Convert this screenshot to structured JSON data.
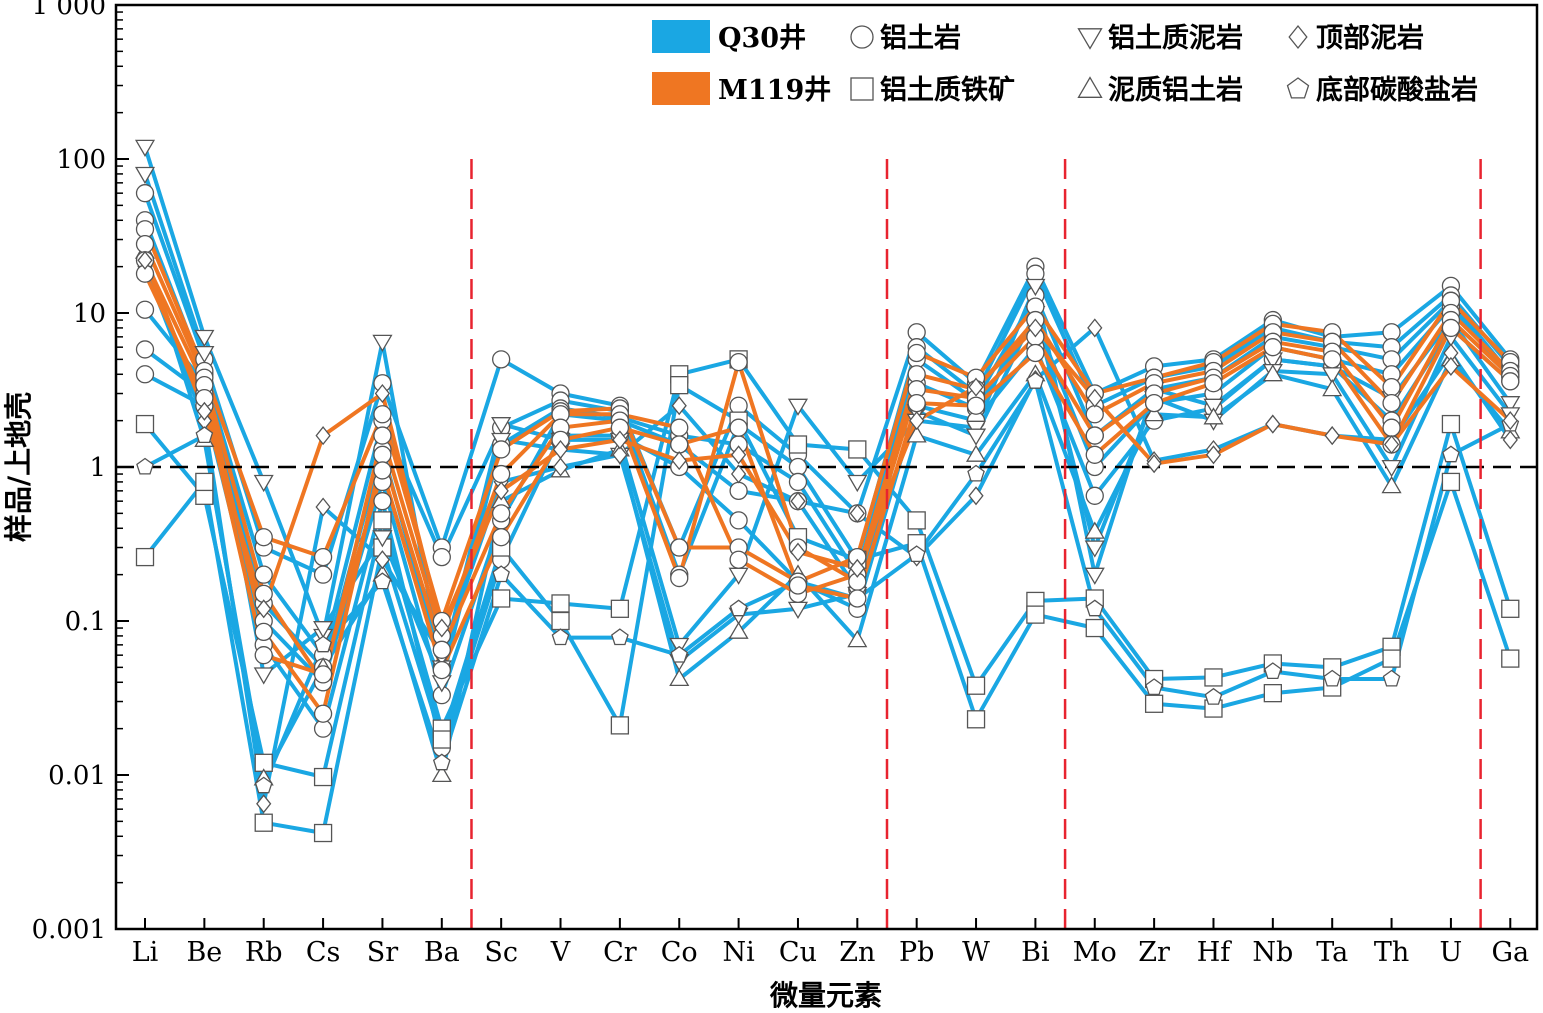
{
  "chart_data": {
    "type": "line",
    "title": "",
    "xlabel": "微量元素",
    "ylabel": "样品/上地壳",
    "yscale": "log",
    "ylim": [
      0.001,
      1000
    ],
    "yticks": [
      {
        "value": 1000,
        "label": "1 000"
      },
      {
        "value": 100,
        "label": "100"
      },
      {
        "value": 10,
        "label": "10"
      },
      {
        "value": 1,
        "label": "1"
      },
      {
        "value": 0.1,
        "label": "0.1"
      },
      {
        "value": 0.01,
        "label": "0.01"
      },
      {
        "value": 0.001,
        "label": "0.001"
      }
    ],
    "categories": [
      "Li",
      "Be",
      "Rb",
      "Cs",
      "Sr",
      "Ba",
      "Sc",
      "V",
      "Cr",
      "Co",
      "Ni",
      "Cu",
      "Zn",
      "Pb",
      "W",
      "Bi",
      "Mo",
      "Zr",
      "Hf",
      "Nb",
      "Ta",
      "Th",
      "U",
      "Ga"
    ],
    "reference_line": 1,
    "group_separators_after": [
      "Ba",
      "Zn",
      "Bi",
      "U"
    ],
    "legend": {
      "wells": [
        {
          "label": "Q30井",
          "color": "#1aa7e3"
        },
        {
          "label": "M119井",
          "color": "#ef7622"
        }
      ],
      "lithologies": [
        {
          "label": "铝土岩",
          "marker": "circle"
        },
        {
          "label": "铝土质铁矿",
          "marker": "square"
        },
        {
          "label": "铝土质泥岩",
          "marker": "triangle-down"
        },
        {
          "label": "泥质铝土岩",
          "marker": "triangle-up"
        },
        {
          "label": "顶部泥岩",
          "marker": "diamond"
        },
        {
          "label": "底部碳酸盐岩",
          "marker": "pentagon"
        }
      ]
    },
    "series": [
      {
        "well": "Q30",
        "marker": "circle",
        "values": [
          60,
          5,
          0.3,
          0.2,
          3.5,
          0.3,
          5,
          3,
          2.5,
          0.3,
          2.5,
          1.2,
          0.5,
          7.5,
          3.5,
          20,
          3,
          4.5,
          5,
          9,
          7,
          7.5,
          15,
          5
        ]
      },
      {
        "well": "Q30",
        "marker": "circle",
        "values": [
          40,
          4,
          0.2,
          0.06,
          2,
          0.26,
          1.8,
          2.7,
          2.3,
          0.2,
          1.9,
          1,
          0.25,
          6,
          3,
          18,
          2.5,
          3.8,
          4.5,
          8,
          6.5,
          6,
          13,
          4.5
        ]
      },
      {
        "well": "Q30",
        "marker": "circle",
        "values": [
          10.5,
          3.5,
          0.13,
          0.05,
          1.3,
          0.05,
          1.4,
          2.4,
          2.1,
          1.6,
          1.4,
          0.8,
          0.2,
          5,
          2.7,
          13,
          1.6,
          3.2,
          3.8,
          7,
          6,
          5,
          12,
          4
        ]
      },
      {
        "well": "Q30",
        "marker": "circle",
        "values": [
          5.8,
          3,
          0.1,
          0.04,
          0.8,
          0.033,
          0.45,
          2.2,
          2,
          1.4,
          0.7,
          0.6,
          0.16,
          3.5,
          2.4,
          9,
          1,
          2.6,
          3,
          6,
          5,
          4,
          11,
          3.8
        ]
      },
      {
        "well": "Q30",
        "marker": "circle",
        "values": [
          4,
          2.5,
          0.07,
          0.02,
          0.6,
          0.015,
          0.25,
          1.6,
          1.6,
          1,
          0.45,
          0.18,
          0.12,
          2.5,
          2,
          6,
          0.65,
          2,
          2.4,
          5,
          4.5,
          2,
          8,
          3.6
        ]
      },
      {
        "well": "Q30",
        "marker": "square",
        "values": [
          1.9,
          0.65,
          0.012,
          0.0097,
          0.45,
          0.02,
          0.14,
          0.13,
          0.12,
          4,
          5,
          1.4,
          1.3,
          0.45,
          0.038,
          0.135,
          0.14,
          0.042,
          0.043,
          0.053,
          0.05,
          0.068,
          1.9,
          0.12
        ]
      },
      {
        "well": "Q30",
        "marker": "square",
        "values": [
          0.26,
          0.8,
          0.0049,
          0.0042,
          0.3,
          0.017,
          0.3,
          0.1,
          0.021,
          3.4,
          2,
          0.35,
          0.25,
          0.32,
          0.023,
          0.11,
          0.09,
          0.029,
          0.027,
          0.034,
          0.037,
          0.057,
          0.8,
          0.057
        ]
      },
      {
        "well": "Q30",
        "marker": "triangle-down",
        "values": [
          120,
          7,
          0.8,
          0.08,
          6.5,
          0.05,
          1.9,
          1.5,
          1.5,
          0.07,
          0.2,
          2.5,
          0.8,
          2,
          1.8,
          15,
          0.2,
          3.2,
          2.5,
          5,
          4.5,
          2.8,
          9,
          2.6
        ]
      },
      {
        "well": "Q30",
        "marker": "triangle-down",
        "values": [
          80,
          5.5,
          0.045,
          0.09,
          0.35,
          0.04,
          1.5,
          1.3,
          1.2,
          0.055,
          0.11,
          0.12,
          0.15,
          2.3,
          1.6,
          10,
          0.3,
          2.8,
          2,
          4.2,
          4,
          1,
          7,
          2.2
        ]
      },
      {
        "well": "Q30",
        "marker": "triangle-up",
        "values": [
          25,
          1.5,
          0.0095,
          0.05,
          0.2,
          0.01,
          0.6,
          0.95,
          1.3,
          0.042,
          0.085,
          0.2,
          0.075,
          1.6,
          1.2,
          4,
          0.38,
          2.2,
          2.1,
          4,
          3.2,
          0.75,
          5,
          1.7
        ]
      },
      {
        "well": "Q30",
        "marker": "diamond",
        "values": [
          20,
          2,
          0.0065,
          0.55,
          0.25,
          0.06,
          0.8,
          1,
          1.2,
          2.5,
          0.9,
          0.6,
          0.5,
          0.26,
          0.65,
          3.7,
          8,
          1.1,
          1.3,
          1.9,
          1.6,
          1.5,
          5.5,
          1.5
        ]
      },
      {
        "well": "Q30",
        "marker": "pentagon",
        "values": [
          1,
          1.6,
          0.0085,
          0.07,
          0.18,
          0.012,
          0.2,
          0.078,
          0.078,
          0.06,
          0.12,
          0.18,
          0.14,
          0.27,
          0.9,
          3.6,
          0.12,
          0.037,
          0.032,
          0.047,
          0.042,
          0.042,
          1.2,
          1.9
        ]
      },
      {
        "well": "M119",
        "marker": "circle",
        "values": [
          35,
          4.2,
          0.35,
          0.26,
          2.2,
          0.1,
          1.3,
          2.3,
          2.4,
          0.3,
          0.3,
          0.18,
          0.26,
          5.5,
          3.8,
          11,
          3,
          3.8,
          4.8,
          8.5,
          7.5,
          3.3,
          12,
          4.8
        ]
      },
      {
        "well": "M119",
        "marker": "circle",
        "values": [
          28,
          3.8,
          0.15,
          0.04,
          1.6,
          0.08,
          0.9,
          2.2,
          2.2,
          1.8,
          0.25,
          0.15,
          0.2,
          4,
          3.2,
          9,
          2.2,
          3.5,
          4.2,
          7.5,
          6.5,
          2.6,
          10,
          4.2
        ]
      },
      {
        "well": "M119",
        "marker": "circle",
        "values": [
          22,
          3.4,
          0.085,
          0.025,
          1.2,
          0.065,
          0.5,
          1.8,
          2,
          0.19,
          4.8,
          0.3,
          0.18,
          3.2,
          2.8,
          7,
          1.6,
          3,
          3.8,
          6.5,
          5.6,
          1.8,
          9,
          3.9
        ]
      },
      {
        "well": "M119",
        "marker": "circle",
        "values": [
          18,
          2.8,
          0.06,
          0.045,
          0.95,
          0.048,
          0.35,
          1.5,
          1.8,
          1.4,
          1.8,
          0.17,
          0.14,
          2.6,
          2.5,
          5.5,
          1.2,
          2.6,
          3.5,
          6,
          5,
          1.4,
          8,
          3.6
        ]
      },
      {
        "well": "M119",
        "marker": "diamond",
        "values": [
          22,
          2.3,
          0.12,
          1.6,
          3,
          0.09,
          0.7,
          1.3,
          1.5,
          1.1,
          1.2,
          0.28,
          0.22,
          2,
          3.3,
          8,
          2.8,
          1.05,
          1.2,
          1.9,
          1.6,
          1.4,
          4.5,
          2
        ]
      }
    ]
  }
}
